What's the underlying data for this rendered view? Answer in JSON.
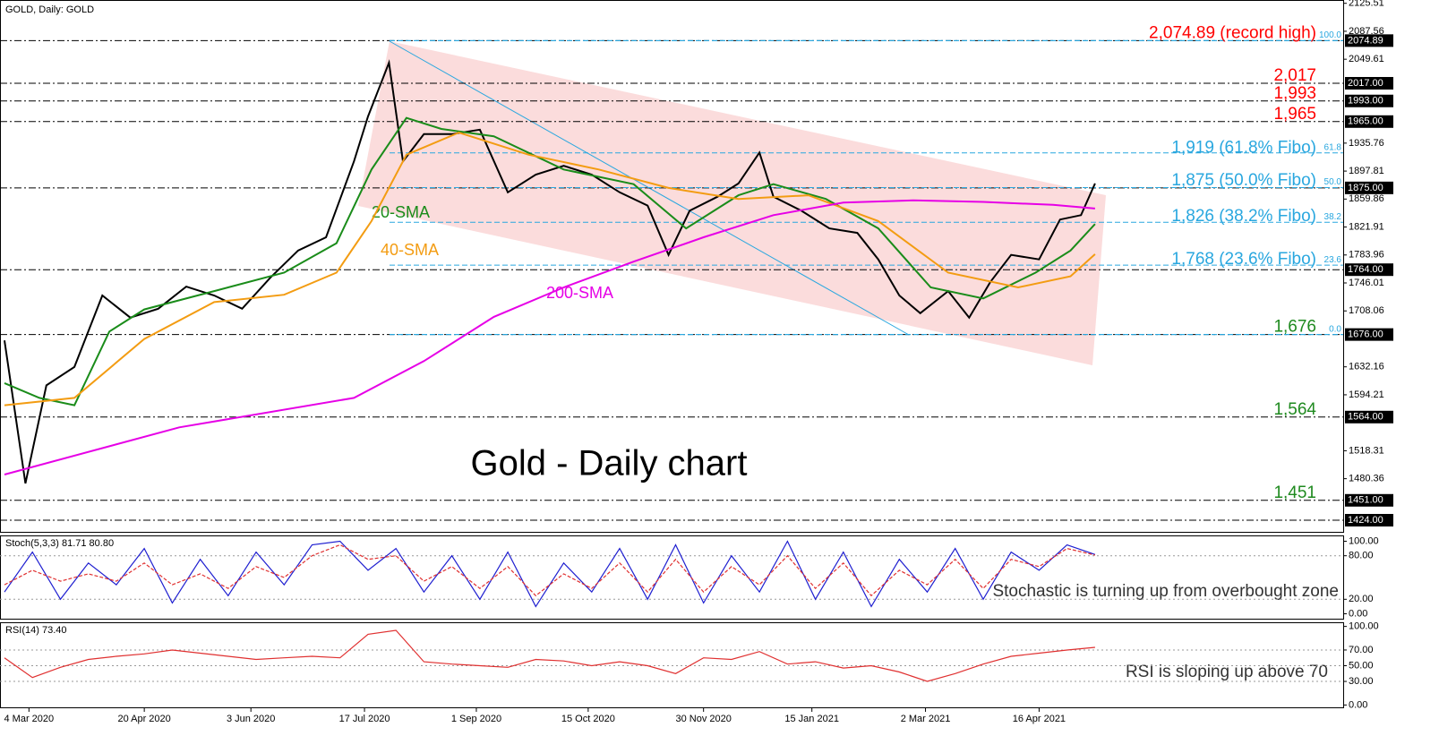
{
  "chart_data": [
    {
      "type": "line",
      "title": "GOLD, Daily:  GOLD",
      "heading": "Gold - Daily chart",
      "xlim": [
        0,
        383
      ],
      "ylim": [
        1407,
        2130
      ],
      "xticks": [
        {
          "value": 7,
          "label": "4 Mar 2020"
        },
        {
          "value": 40,
          "label": "20 Apr 2020"
        },
        {
          "value": 70.5,
          "label": "3 Jun 2020"
        },
        {
          "value": 103,
          "label": "17 Jul 2020"
        },
        {
          "value": 135,
          "label": "1 Sep 2020"
        },
        {
          "value": 167,
          "label": "15 Oct 2020"
        },
        {
          "value": 200,
          "label": "30 Nov 2020"
        },
        {
          "value": 231,
          "label": "15 Jan 2021"
        },
        {
          "value": 263.5,
          "label": "2 Mar 2021"
        },
        {
          "value": 296,
          "label": "16 Apr 2021"
        }
      ],
      "yticks": [
        2125.51,
        2087.56,
        2049.61,
        1935.76,
        1897.81,
        1859.86,
        1821.91,
        1783.96,
        1746.01,
        1708.06,
        1632.16,
        1594.21,
        1518.31,
        1480.36
      ],
      "levels": [
        2074.89,
        {
          "value": 2017,
          "label": "2017.00"
        },
        {
          "value": 1993,
          "label": "1993.00"
        },
        {
          "value": 1965,
          "label": "1965.00"
        },
        {
          "value": 1875,
          "label": "1875.00"
        },
        {
          "value": 1764,
          "label": "1764.00"
        },
        {
          "value": 1676,
          "label": "1676.00"
        },
        {
          "value": 1564,
          "label": "1564.00"
        },
        {
          "value": 1451,
          "label": "1451.00"
        },
        {
          "value": 1424,
          "label": "1424.00"
        }
      ],
      "fibo": {
        "high": 2074.89,
        "low": 1676,
        "color": "#29a7df",
        "ratios": [
          {
            "value": 100,
            "label": "100.0"
          },
          61.8,
          {
            "value": 50,
            "label": "50.0"
          },
          38.2,
          23.6,
          {
            "value": 0,
            "label": "0.0"
          }
        ]
      },
      "annotations": [
        {
          "text": "2,074.89 (record high)",
          "value": 2074.89,
          "color": "#ff0000"
        },
        {
          "text": "2,017",
          "value": 2017,
          "color": "#ff0000"
        },
        {
          "text": "1,993",
          "value": 1993,
          "color": "#ff0000"
        },
        {
          "text": "1,965",
          "value": 1965,
          "color": "#ff0000"
        },
        {
          "text": "1,919 (61.8% Fibo)",
          "value": 1919,
          "color": "#29a7df"
        },
        {
          "text": "1,875 (50.0% Fibo)",
          "value": 1875,
          "color": "#29a7df"
        },
        {
          "text": "1,826 (38.2% Fibo)",
          "value": 1826,
          "color": "#29a7df"
        },
        {
          "text": "1,768 (23.6% Fibo)",
          "value": 1768,
          "color": "#29a7df"
        },
        {
          "text": "1,676",
          "value": 1676,
          "color": "#1f8a1f"
        },
        {
          "text": "1,564",
          "value": 1564,
          "color": "#1f8a1f"
        },
        {
          "text": "1,451",
          "value": 1451,
          "color": "#1f8a1f"
        }
      ],
      "series": [
        {
          "color": "#000000",
          "x": [
            0,
            6,
            12,
            20,
            28,
            36,
            44,
            52,
            60,
            68,
            76,
            84,
            92,
            100,
            104,
            110,
            114,
            120,
            128,
            136,
            144,
            152,
            160,
            168,
            176,
            184,
            190,
            196,
            204,
            210,
            216,
            220,
            228,
            236,
            244,
            250,
            256,
            262,
            270,
            276,
            282,
            288,
            296,
            302,
            308,
            312
          ],
          "values": [
            1668,
            1474,
            1607,
            1632,
            1729,
            1699,
            1711,
            1741,
            1729,
            1711,
            1753,
            1790,
            1808,
            1911,
            1972,
            2045,
            1911,
            1948,
            1948,
            1954,
            1869,
            1893,
            1905,
            1893,
            1869,
            1851,
            1784,
            1844,
            1863,
            1881,
            1923,
            1863,
            1844,
            1820,
            1814,
            1778,
            1729,
            1705,
            1735,
            1699,
            1747,
            1784,
            1778,
            1832,
            1838,
            1881
          ]
        },
        {
          "name": "20-SMA",
          "color": "#1a8c1a",
          "x": [
            0,
            10,
            20,
            30,
            40,
            60,
            80,
            95,
            105,
            115,
            125,
            140,
            160,
            180,
            195,
            210,
            220,
            235,
            250,
            265,
            280,
            295,
            305,
            312
          ],
          "values": [
            1610,
            1590,
            1580,
            1680,
            1710,
            1735,
            1760,
            1800,
            1900,
            1970,
            1955,
            1945,
            1900,
            1880,
            1820,
            1865,
            1880,
            1860,
            1820,
            1740,
            1725,
            1760,
            1790,
            1826
          ]
        },
        {
          "name": "40-SMA",
          "color": "#f39c12",
          "x": [
            0,
            20,
            40,
            60,
            80,
            95,
            105,
            115,
            130,
            150,
            170,
            190,
            210,
            230,
            250,
            270,
            290,
            305,
            312
          ],
          "values": [
            1580,
            1590,
            1670,
            1720,
            1730,
            1760,
            1830,
            1920,
            1950,
            1920,
            1900,
            1875,
            1860,
            1865,
            1830,
            1760,
            1740,
            1755,
            1785
          ]
        },
        {
          "name": "200-SMA",
          "color": "#e600e6",
          "x": [
            0,
            50,
            100,
            120,
            140,
            160,
            180,
            200,
            220,
            240,
            260,
            280,
            300,
            312
          ],
          "values": [
            1486,
            1550,
            1590,
            1640,
            1700,
            1740,
            1775,
            1808,
            1838,
            1855,
            1858,
            1856,
            1852,
            1847
          ]
        }
      ]
    },
    {
      "type": "line",
      "title": "Stoch(5,3,3) 81.71 80.80",
      "note": "Stochastic is turning up from overbought zone",
      "xlim": [
        0,
        383
      ],
      "ylim": [
        -8,
        108
      ],
      "yticks": [
        {
          "value": 100,
          "label": "100.00"
        },
        {
          "value": 80,
          "label": "80.00"
        },
        {
          "value": 20,
          "label": "20.00"
        },
        {
          "value": 0,
          "label": "0.00"
        }
      ],
      "levels": [
        80,
        20
      ],
      "series": [
        {
          "color": "#1f1fd0",
          "x": [
            0,
            8,
            16,
            24,
            32,
            40,
            48,
            56,
            64,
            72,
            80,
            88,
            96,
            104,
            112,
            120,
            128,
            136,
            144,
            152,
            160,
            168,
            176,
            184,
            192,
            200,
            208,
            216,
            224,
            232,
            240,
            248,
            256,
            264,
            272,
            280,
            288,
            296,
            304,
            312
          ],
          "values": [
            30,
            85,
            20,
            70,
            40,
            90,
            15,
            75,
            25,
            85,
            40,
            95,
            100,
            60,
            90,
            30,
            80,
            20,
            85,
            10,
            70,
            30,
            90,
            20,
            95,
            15,
            80,
            30,
            100,
            20,
            85,
            10,
            75,
            30,
            90,
            20,
            85,
            60,
            95,
            81.71
          ]
        },
        {
          "color": "#e03030",
          "dash": true,
          "x": [
            0,
            8,
            16,
            24,
            32,
            40,
            48,
            56,
            64,
            72,
            80,
            88,
            96,
            104,
            112,
            120,
            128,
            136,
            144,
            152,
            160,
            168,
            176,
            184,
            192,
            200,
            208,
            216,
            224,
            232,
            240,
            248,
            256,
            264,
            272,
            280,
            288,
            296,
            304,
            312
          ],
          "values": [
            40,
            60,
            45,
            55,
            45,
            70,
            40,
            55,
            35,
            65,
            50,
            80,
            95,
            75,
            80,
            45,
            65,
            35,
            65,
            25,
            55,
            35,
            70,
            30,
            75,
            30,
            65,
            40,
            80,
            35,
            70,
            25,
            60,
            40,
            75,
            35,
            75,
            65,
            90,
            80.8
          ]
        }
      ]
    },
    {
      "type": "line",
      "title": "RSI(14) 73.40",
      "note": "RSI is sloping up above 70",
      "xlim": [
        0,
        383
      ],
      "ylim": [
        -3,
        103
      ],
      "yticks": [
        {
          "value": 100,
          "label": "100.00"
        },
        {
          "value": 70,
          "label": "70.00"
        },
        {
          "value": 50,
          "label": "50.00"
        },
        {
          "value": 30,
          "label": "30.00"
        },
        {
          "value": 0,
          "label": "0.00"
        }
      ],
      "levels": [
        70,
        50,
        30
      ],
      "series": [
        {
          "color": "#e03030",
          "x": [
            0,
            8,
            16,
            24,
            32,
            40,
            48,
            56,
            64,
            72,
            80,
            88,
            96,
            104,
            112,
            120,
            128,
            136,
            144,
            152,
            160,
            168,
            176,
            184,
            192,
            200,
            208,
            216,
            224,
            232,
            240,
            248,
            256,
            264,
            272,
            280,
            288,
            296,
            304,
            312
          ],
          "values": [
            60,
            35,
            48,
            58,
            62,
            65,
            70,
            66,
            62,
            58,
            60,
            62,
            60,
            90,
            95,
            55,
            52,
            50,
            48,
            58,
            56,
            50,
            55,
            50,
            40,
            60,
            58,
            68,
            52,
            55,
            47,
            50,
            42,
            30,
            40,
            52,
            62,
            66,
            70,
            73.4
          ]
        }
      ]
    }
  ]
}
